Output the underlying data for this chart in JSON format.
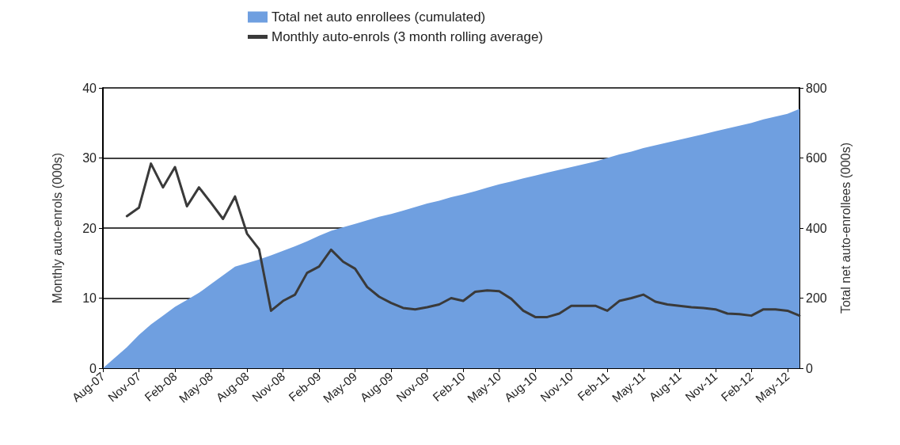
{
  "chart_data": {
    "type": "line",
    "ylabel": "Monthly auto-enrols (000s)",
    "y2label": "Total net auto-enrollees (000s)",
    "categories": [
      "Aug-07",
      null,
      null,
      "Nov-07",
      null,
      null,
      "Feb-08",
      null,
      null,
      "May-08",
      null,
      null,
      "Aug-08",
      null,
      null,
      "Nov-08",
      null,
      null,
      "Feb-09",
      null,
      null,
      "May-09",
      null,
      null,
      "Aug-09",
      null,
      null,
      "Nov-09",
      null,
      null,
      "Feb-10",
      null,
      null,
      "May-10",
      null,
      null,
      "Aug-10",
      null,
      null,
      "Nov-10",
      null,
      null,
      "Feb-11",
      null,
      null,
      "May-11",
      null,
      null,
      "Aug-11",
      null,
      null,
      "Nov-11",
      null,
      null,
      "Feb-12",
      null,
      null,
      "May-12",
      null
    ],
    "series": [
      {
        "name": "Total net auto enrollees (cumulated)",
        "type": "area",
        "axis": "y2",
        "color": "#6f9fe0",
        "values": [
          0,
          30,
          60,
          95,
          125,
          150,
          175,
          195,
          215,
          240,
          265,
          290,
          300,
          310,
          322,
          335,
          348,
          362,
          378,
          392,
          402,
          412,
          422,
          432,
          440,
          450,
          460,
          470,
          478,
          488,
          496,
          505,
          515,
          525,
          533,
          542,
          550,
          558,
          566,
          574,
          582,
          590,
          600,
          610,
          618,
          628,
          636,
          644,
          652,
          660,
          668,
          676,
          684,
          692,
          700,
          710,
          718,
          726,
          740
        ]
      },
      {
        "name": "Monthly auto-enrols (3 month rolling average)",
        "color": "#3a3a3a",
        "values": [
          null,
          null,
          21.7,
          22.9,
          29.2,
          25.8,
          28.7,
          23.1,
          25.8,
          23.6,
          21.3,
          24.5,
          19.2,
          17.0,
          8.2,
          9.6,
          10.5,
          13.6,
          14.5,
          16.9,
          15.2,
          14.2,
          11.6,
          10.2,
          9.3,
          8.6,
          8.4,
          8.7,
          9.1,
          10.0,
          9.6,
          10.9,
          11.1,
          11.0,
          9.9,
          8.2,
          7.3,
          7.3,
          7.8,
          8.9,
          8.9,
          8.9,
          8.2,
          9.6,
          10.0,
          10.5,
          9.5,
          9.1,
          8.9,
          8.7,
          8.6,
          8.4,
          7.8,
          7.7,
          7.5,
          8.4,
          8.4,
          8.2,
          7.5
        ]
      }
    ],
    "ylim": [
      0,
      40
    ],
    "yticks": [
      0,
      10,
      20,
      30,
      40
    ],
    "y2lim": [
      0,
      800
    ],
    "y2ticks": [
      0,
      200,
      400,
      600,
      800
    ],
    "grid": "y",
    "legend": "top",
    "marker": "none",
    "line_style": "solid"
  }
}
